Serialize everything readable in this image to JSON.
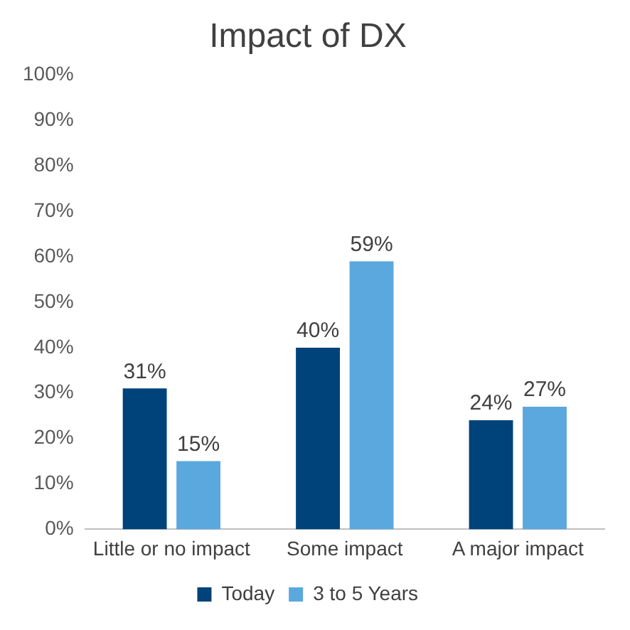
{
  "chart_data": {
    "type": "bar",
    "title": "Impact of DX",
    "categories": [
      "Little or no impact",
      "Some impact",
      "A major impact"
    ],
    "series": [
      {
        "name": "Today",
        "color": "#00427a",
        "values": [
          31,
          40,
          24
        ],
        "value_labels": [
          "31%",
          "40%",
          "24%"
        ]
      },
      {
        "name": "3 to 5 Years",
        "color": "#5ba8de",
        "values": [
          15,
          59,
          27
        ],
        "value_labels": [
          "15%",
          "59%",
          "27%"
        ]
      }
    ],
    "ylim": [
      0,
      100
    ],
    "yticks": [
      {
        "value": 0,
        "label": "0%"
      },
      {
        "value": 10,
        "label": "10%"
      },
      {
        "value": 20,
        "label": "20%"
      },
      {
        "value": 30,
        "label": "30%"
      },
      {
        "value": 40,
        "label": "40%"
      },
      {
        "value": 50,
        "label": "50%"
      },
      {
        "value": 60,
        "label": "60%"
      },
      {
        "value": 70,
        "label": "70%"
      },
      {
        "value": 80,
        "label": "80%"
      },
      {
        "value": 90,
        "label": "90%"
      },
      {
        "value": 100,
        "label": "100%"
      }
    ],
    "grid": false,
    "legend": "bottom"
  }
}
